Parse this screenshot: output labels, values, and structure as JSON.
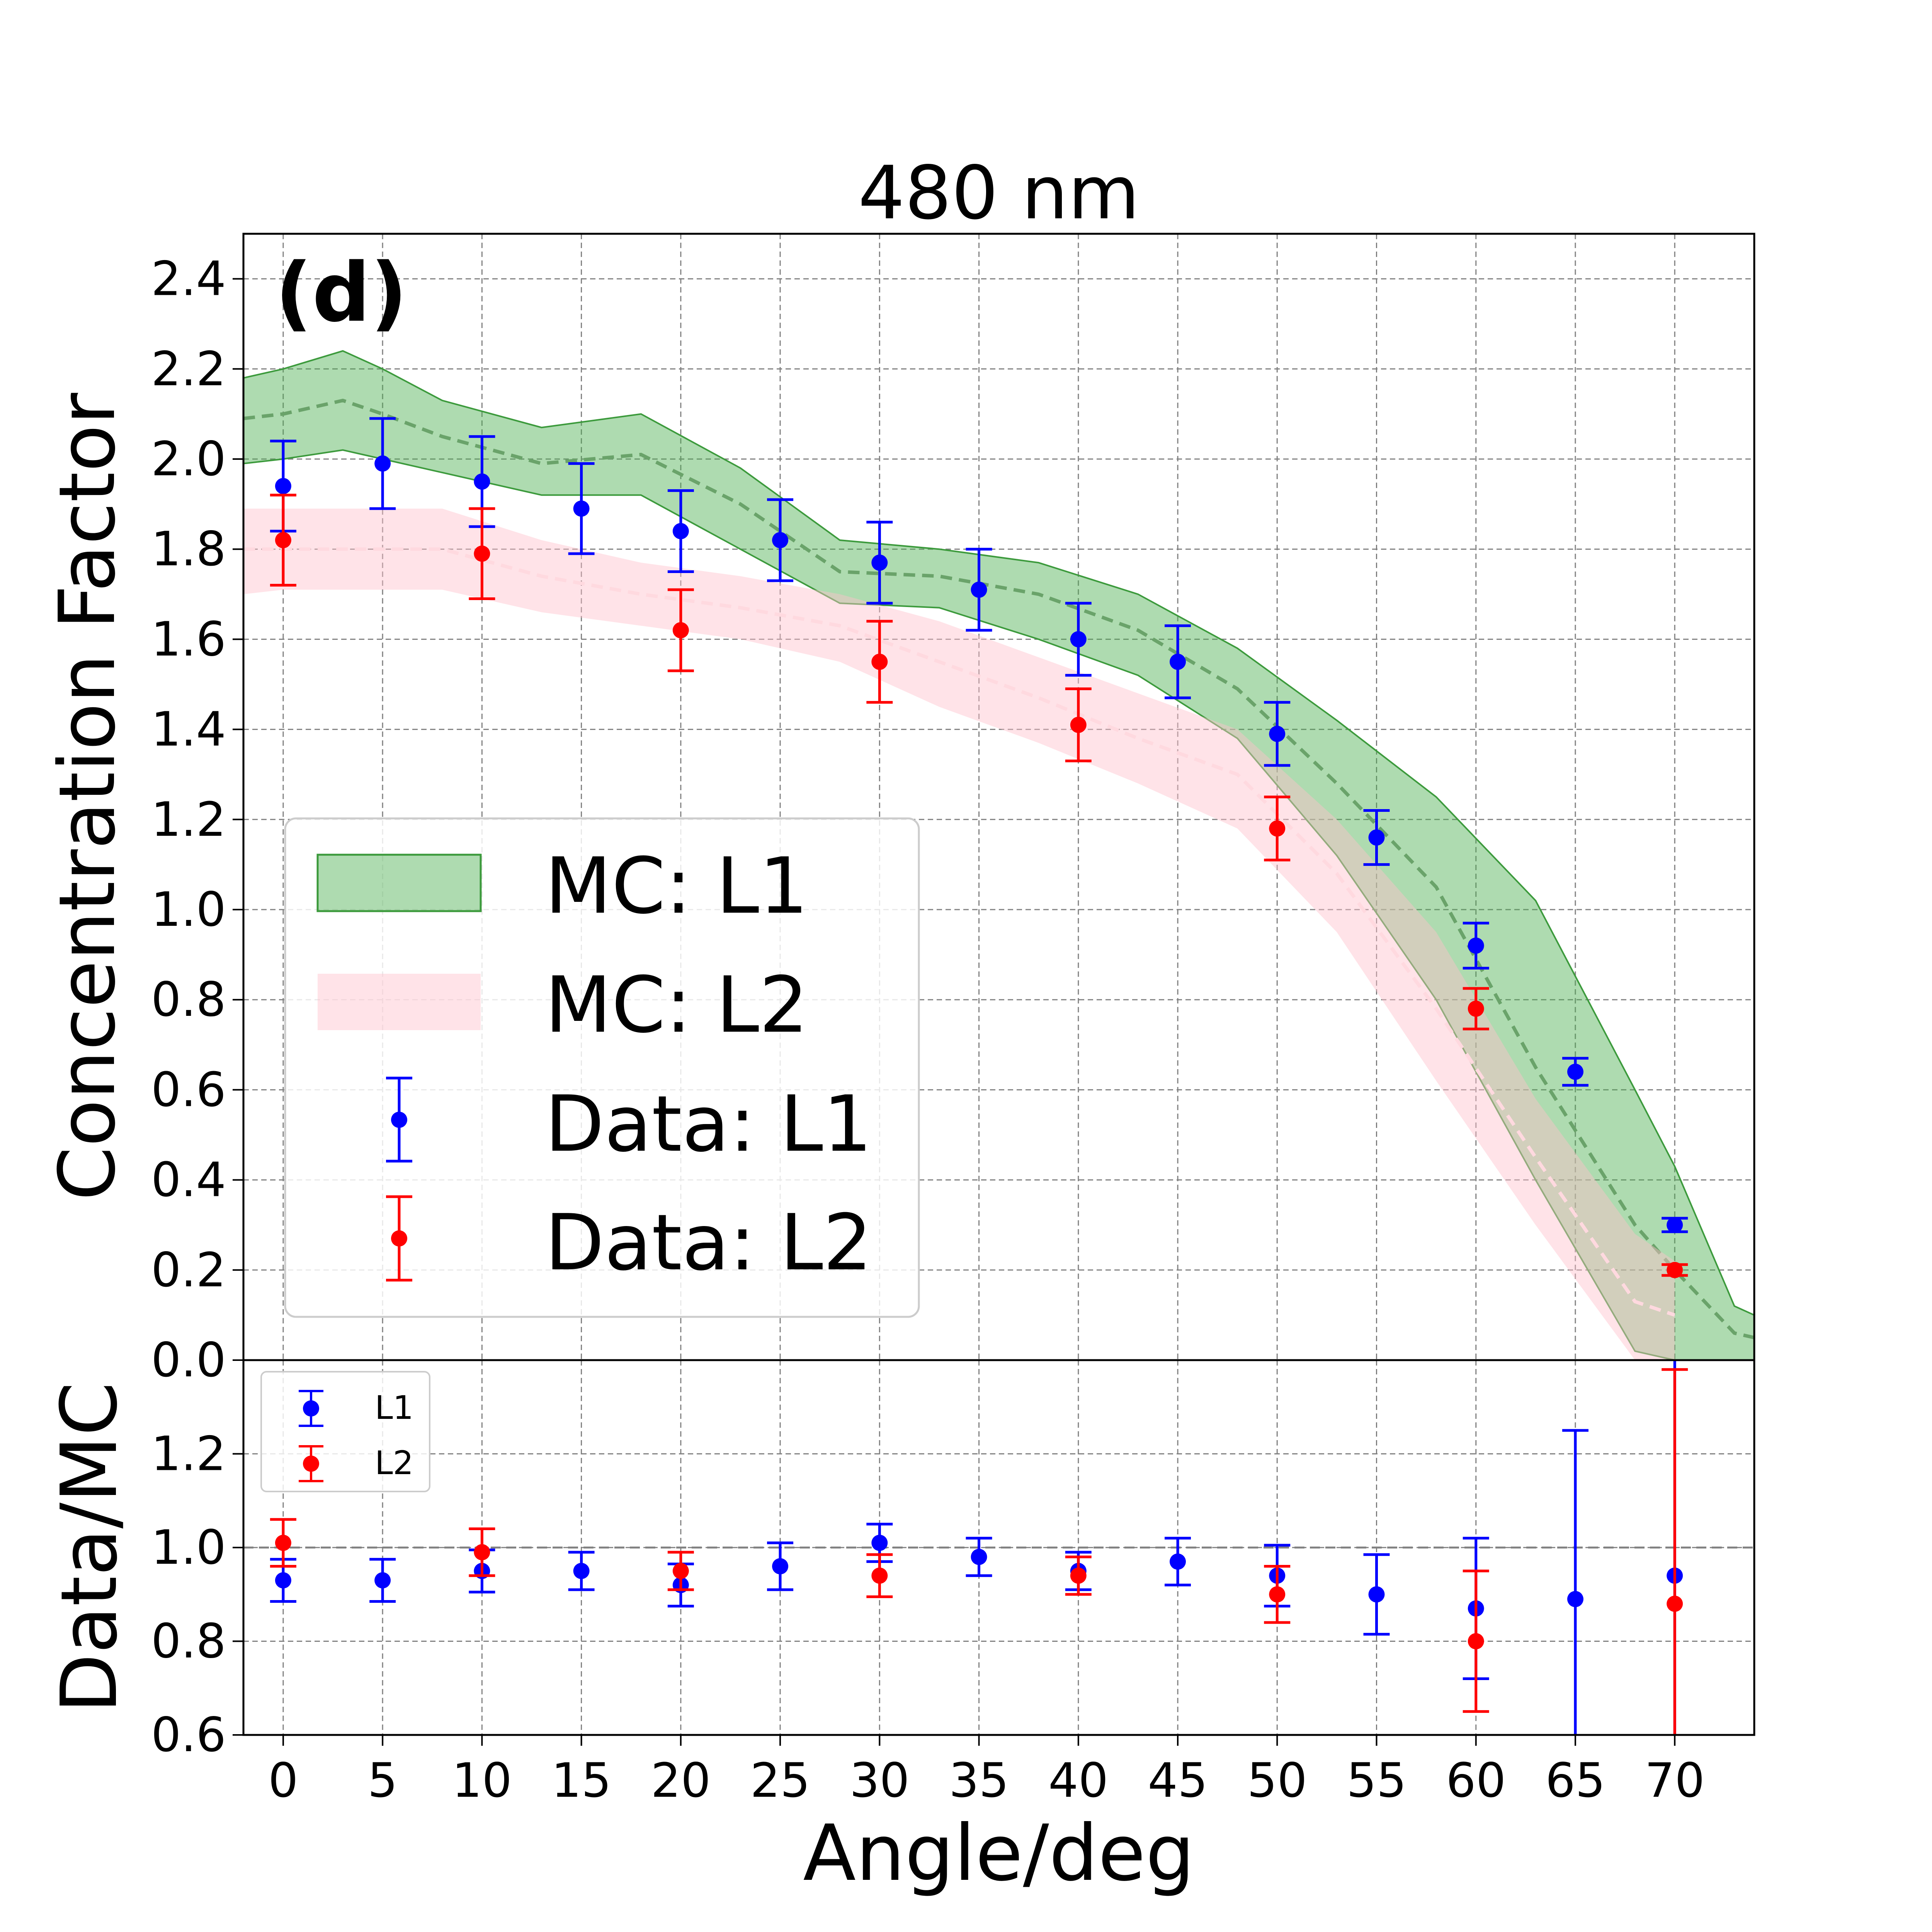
{
  "colors": {
    "l1_data": "#0000ff",
    "l2_data": "#ff0000",
    "l1_band": "#4caf50",
    "l1_band_edge": "#3c9a3c",
    "l1_mean": "#6aa36a",
    "l2_band": "#ffc0cb",
    "l2_mean": "#ffd9df",
    "ratio_reference": "#808080"
  },
  "chart_data": [
    {
      "type": "line",
      "panel": "main",
      "title": "480 nm",
      "panel_tag": "(d)",
      "ylabel": "Concentration Factor",
      "xlabel": "",
      "xlim": [
        -2,
        74
      ],
      "ylim": [
        0,
        2.5
      ],
      "grid": true,
      "legend_position": "center-left",
      "yticks": [
        "0.0",
        "0.2",
        "0.4",
        "0.6",
        "0.8",
        "1.0",
        "1.2",
        "1.4",
        "1.6",
        "1.8",
        "2.0",
        "2.2",
        "2.4"
      ],
      "bands": [
        {
          "name": "MC: L1",
          "x": [
            -2,
            0,
            3,
            5,
            8,
            13,
            18,
            23,
            28,
            33,
            38,
            43,
            48,
            53,
            58,
            63,
            68,
            70,
            73,
            74
          ],
          "lower": [
            1.99,
            2.0,
            2.02,
            2.0,
            1.97,
            1.92,
            1.92,
            1.8,
            1.68,
            1.67,
            1.6,
            1.52,
            1.38,
            1.12,
            0.8,
            0.4,
            0.02,
            0.0,
            0.0,
            0.0
          ],
          "mean": [
            2.09,
            2.1,
            2.13,
            2.1,
            2.05,
            1.99,
            2.01,
            1.9,
            1.75,
            1.74,
            1.7,
            1.62,
            1.49,
            1.28,
            1.05,
            0.65,
            0.3,
            0.2,
            0.06,
            0.05
          ],
          "upper": [
            2.18,
            2.2,
            2.24,
            2.2,
            2.13,
            2.07,
            2.1,
            1.98,
            1.82,
            1.8,
            1.77,
            1.7,
            1.58,
            1.42,
            1.25,
            1.02,
            0.6,
            0.43,
            0.12,
            0.1
          ]
        },
        {
          "name": "MC: L2",
          "x": [
            -2,
            0,
            5,
            8,
            13,
            18,
            23,
            28,
            33,
            38,
            43,
            48,
            53,
            58,
            63,
            68,
            70
          ],
          "lower": [
            1.7,
            1.71,
            1.71,
            1.71,
            1.66,
            1.63,
            1.6,
            1.55,
            1.45,
            1.37,
            1.28,
            1.18,
            0.95,
            0.62,
            0.3,
            0.0,
            0.0
          ],
          "mean": [
            1.8,
            1.8,
            1.8,
            1.8,
            1.74,
            1.7,
            1.67,
            1.63,
            1.55,
            1.47,
            1.38,
            1.3,
            1.08,
            0.78,
            0.45,
            0.13,
            0.1
          ],
          "upper": [
            1.89,
            1.89,
            1.89,
            1.89,
            1.82,
            1.77,
            1.74,
            1.7,
            1.64,
            1.56,
            1.48,
            1.4,
            1.2,
            0.95,
            0.58,
            0.28,
            0.22
          ]
        }
      ],
      "series": [
        {
          "name": "Data: L1",
          "x": [
            0,
            5,
            10,
            15,
            20,
            25,
            30,
            35,
            40,
            45,
            50,
            55,
            60,
            65,
            70
          ],
          "y": [
            1.94,
            1.99,
            1.95,
            1.89,
            1.84,
            1.82,
            1.77,
            1.71,
            1.6,
            1.55,
            1.39,
            1.16,
            0.92,
            0.64,
            0.3
          ],
          "err": [
            0.1,
            0.1,
            0.1,
            0.1,
            0.09,
            0.09,
            0.09,
            0.09,
            0.08,
            0.08,
            0.07,
            0.06,
            0.05,
            0.03,
            0.015
          ]
        },
        {
          "name": "Data: L2",
          "x": [
            0,
            10,
            20,
            30,
            40,
            50,
            60,
            70
          ],
          "y": [
            1.82,
            1.79,
            1.62,
            1.55,
            1.41,
            1.18,
            0.78,
            0.2
          ],
          "err": [
            0.1,
            0.1,
            0.09,
            0.09,
            0.08,
            0.07,
            0.045,
            0.012
          ]
        }
      ]
    },
    {
      "type": "scatter",
      "panel": "ratio",
      "ylabel": "Data/MC",
      "xlabel": "Angle/deg",
      "xlim": [
        -2,
        74
      ],
      "ylim": [
        0.6,
        1.4
      ],
      "grid": true,
      "reference_line": 1.0,
      "legend_position": "top-left",
      "xticks": [
        "0",
        "5",
        "10",
        "15",
        "20",
        "25",
        "30",
        "35",
        "40",
        "45",
        "50",
        "55",
        "60",
        "65",
        "70"
      ],
      "yticks": [
        "0.6",
        "0.8",
        "1.0",
        "1.2"
      ],
      "series": [
        {
          "name": "L1",
          "x": [
            0,
            5,
            10,
            15,
            20,
            25,
            30,
            35,
            40,
            45,
            50,
            55,
            60,
            65,
            70
          ],
          "y": [
            0.93,
            0.93,
            0.95,
            0.95,
            0.92,
            0.96,
            1.01,
            0.98,
            0.95,
            0.97,
            0.94,
            0.9,
            0.87,
            0.89,
            0.94
          ],
          "err": [
            0.045,
            0.045,
            0.045,
            0.04,
            0.045,
            0.05,
            0.04,
            0.04,
            0.04,
            0.05,
            0.065,
            0.085,
            0.15,
            0.36,
            0.5
          ]
        },
        {
          "name": "L2",
          "x": [
            0,
            10,
            20,
            30,
            40,
            50,
            60,
            70
          ],
          "y": [
            1.01,
            0.99,
            0.95,
            0.94,
            0.94,
            0.9,
            0.8,
            0.88
          ],
          "err": [
            0.05,
            0.05,
            0.04,
            0.045,
            0.04,
            0.06,
            0.15,
            0.5
          ]
        }
      ]
    }
  ]
}
